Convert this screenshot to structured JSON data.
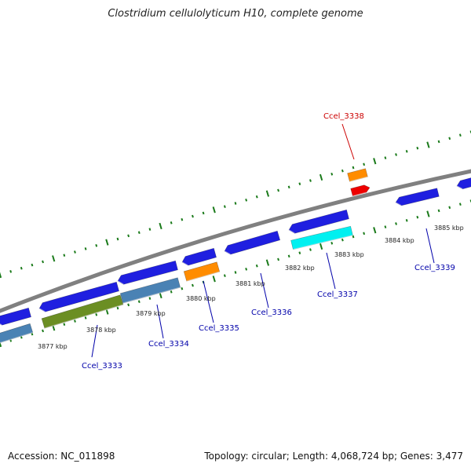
{
  "title": "Clostridium cellulolyticum H10, complete genome",
  "footer": {
    "accession": "Accession: NC_011898",
    "summary": "Topology: circular; Length: 4,068,724 bp; Genes: 3,477"
  },
  "colors": {
    "backbone": "#808080",
    "tick": "#1a7a1a",
    "gene_blue": "#1f1fe0",
    "gene_steelblue": "#4a82b4",
    "gene_olive": "#6b8e23",
    "gene_orange": "#ff8c00",
    "gene_red": "#ee0000",
    "gene_cyan": "#00f0f0",
    "label_blue": "#0000aa",
    "label_red": "#cc0000"
  },
  "kbp_labels": [
    "3877 kbp",
    "3878 kbp",
    "3879 kbp",
    "3880 kbp",
    "3881 kbp",
    "3882 kbp",
    "3883 kbp",
    "3884 kbp",
    "3885 kbp"
  ],
  "gene_labels": [
    {
      "name": "Ccel_3333",
      "color": "label_blue"
    },
    {
      "name": "Ccel_3334",
      "color": "label_blue"
    },
    {
      "name": "Ccel_3335",
      "color": "label_blue"
    },
    {
      "name": "Ccel_3336",
      "color": "label_blue"
    },
    {
      "name": "Ccel_3337",
      "color": "label_blue"
    },
    {
      "name": "Ccel_3338",
      "color": "label_red"
    },
    {
      "name": "Ccel_3339",
      "color": "label_blue"
    }
  ]
}
